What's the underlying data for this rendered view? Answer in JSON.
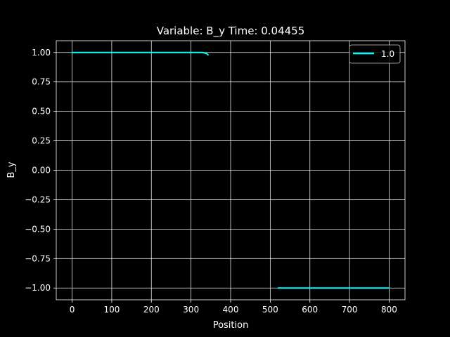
{
  "chart_data": {
    "type": "line",
    "title": "Variable: B_y Time: 0.04455",
    "xlabel": "Position",
    "ylabel": "B_y",
    "xlim": [
      -40,
      840
    ],
    "ylim": [
      -1.1,
      1.1
    ],
    "xticks": [
      0,
      100,
      200,
      300,
      400,
      500,
      600,
      700,
      800
    ],
    "yticks": [
      -1.0,
      -0.75,
      -0.5,
      -0.25,
      0.0,
      0.25,
      0.5,
      0.75,
      1.0
    ],
    "xtick_labels": [
      "0",
      "100",
      "200",
      "300",
      "400",
      "500",
      "600",
      "700",
      "800"
    ],
    "ytick_labels": [
      "−1.00",
      "−0.75",
      "−0.50",
      "−0.25",
      "0.00",
      "0.25",
      "0.50",
      "0.75",
      "1.00"
    ],
    "grid": true,
    "legend_position": "top-right",
    "background": "#000000",
    "foreground": "#ffffff",
    "series": [
      {
        "name": "1.0",
        "color": "#00ffff",
        "segments": [
          {
            "x": [
              0,
              50,
              100,
              150,
              200,
              250,
              300,
              330,
              335,
              340,
              343
            ],
            "y": [
              1.0,
              1.0,
              1.0,
              1.0,
              1.0,
              1.0,
              1.0,
              1.0,
              0.995,
              0.99,
              0.98
            ]
          },
          {
            "x": [
              520,
              550,
              600,
              650,
              700,
              750,
              800
            ],
            "y": [
              -1.0,
              -1.0,
              -1.0,
              -1.0,
              -1.0,
              -1.0,
              -1.0
            ]
          }
        ]
      }
    ]
  }
}
